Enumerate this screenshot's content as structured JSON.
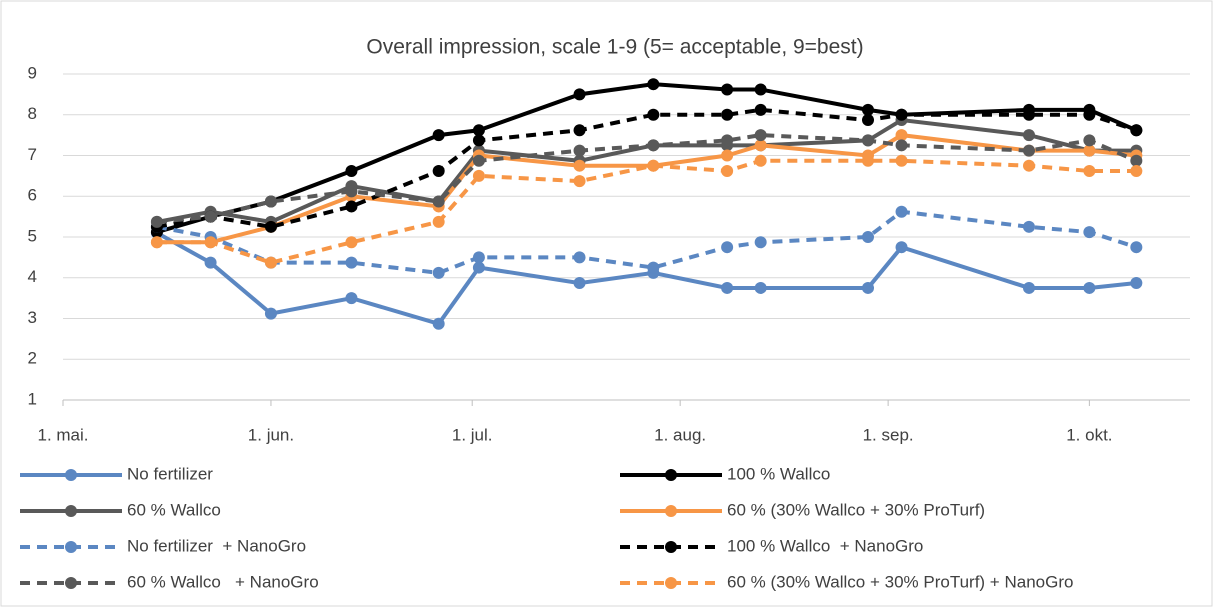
{
  "chart_data": {
    "type": "line",
    "title": "Overall impression, scale 1-9 (5= acceptable, 9=best)",
    "x": [
      14,
      22,
      31,
      43,
      56,
      62,
      77,
      88,
      99,
      104,
      120,
      125,
      144,
      153,
      160
    ],
    "xlim": [
      0,
      168
    ],
    "xticks": [
      {
        "value": 0,
        "label": "1. mai."
      },
      {
        "value": 31,
        "label": "1. jun."
      },
      {
        "value": 61,
        "label": "1. jul."
      },
      {
        "value": 92,
        "label": "1. aug."
      },
      {
        "value": 123,
        "label": "1. sep."
      },
      {
        "value": 153,
        "label": "1. okt."
      }
    ],
    "ylim": [
      1,
      9
    ],
    "yticks": [
      1,
      2,
      3,
      4,
      5,
      6,
      7,
      8,
      9
    ],
    "grid": true,
    "legend": "bottom",
    "series": [
      {
        "name": "No fertilizer",
        "color": "#5b87c2",
        "dash": false,
        "values": [
          5.1,
          4.37,
          3.12,
          3.5,
          2.87,
          4.25,
          3.87,
          4.12,
          3.75,
          3.75,
          3.75,
          4.75,
          3.75,
          3.75,
          3.87
        ]
      },
      {
        "name": "100 % Wallco",
        "color": "#000000",
        "dash": false,
        "values": [
          5.12,
          5.5,
          5.87,
          6.62,
          7.5,
          7.62,
          8.5,
          8.75,
          8.62,
          8.62,
          8.12,
          8.0,
          8.12,
          8.12,
          7.62
        ]
      },
      {
        "name": "60 % Wallco",
        "color": "#595959",
        "dash": false,
        "values": [
          5.37,
          5.62,
          5.37,
          6.25,
          5.87,
          7.12,
          6.87,
          7.25,
          7.25,
          7.25,
          7.37,
          7.87,
          7.5,
          7.12,
          7.12
        ]
      },
      {
        "name": "60 % (30% Wallco + 30% ProTurf)",
        "color": "#f79646",
        "dash": false,
        "values": [
          4.87,
          4.87,
          5.25,
          6.0,
          5.75,
          7.0,
          6.75,
          6.75,
          7.0,
          7.25,
          7.0,
          7.5,
          7.12,
          7.12,
          7.0
        ]
      },
      {
        "name": "No fertilizer  + NanoGro",
        "color": "#5b87c2",
        "dash": true,
        "values": [
          5.25,
          5.0,
          4.37,
          4.37,
          4.12,
          4.5,
          4.5,
          4.25,
          4.75,
          4.87,
          5.0,
          5.62,
          5.25,
          5.12,
          4.75
        ]
      },
      {
        "name": "100 % Wallco  + NanoGro",
        "color": "#000000",
        "dash": true,
        "values": [
          5.25,
          5.5,
          5.25,
          5.75,
          6.62,
          7.37,
          7.62,
          8.0,
          8.0,
          8.12,
          7.87,
          8.0,
          8.0,
          8.0,
          7.62
        ]
      },
      {
        "name": "60 % Wallco   + NanoGro",
        "color": "#595959",
        "dash": true,
        "values": [
          5.37,
          5.5,
          5.87,
          6.12,
          5.87,
          6.87,
          7.12,
          7.25,
          7.37,
          7.5,
          7.37,
          7.25,
          7.12,
          7.37,
          6.87
        ]
      },
      {
        "name": "60 % (30% Wallco + 30% ProTurf) + NanoGro",
        "color": "#f79646",
        "dash": true,
        "values": [
          4.87,
          4.87,
          4.37,
          4.87,
          5.37,
          6.5,
          6.37,
          6.75,
          6.62,
          6.87,
          6.87,
          6.87,
          6.75,
          6.62,
          6.62
        ]
      }
    ]
  }
}
